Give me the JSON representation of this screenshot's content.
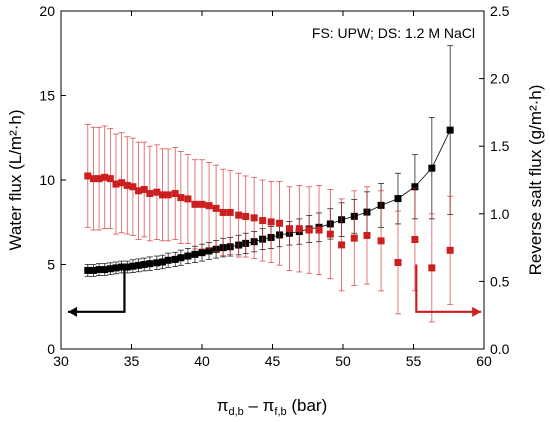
{
  "chart_data": {
    "type": "scatter",
    "annotation": "FS: UPW; DS: 1.2 M NaCl",
    "xlabel": {
      "pi": "π",
      "sub1": "d,b",
      "dash": " – ",
      "sub2": "f,b",
      "unit": " (bar)"
    },
    "ylabel_left": "Water flux (L/m²·h)",
    "ylabel_right": "Reverse salt flux (g/m²·h)",
    "xlim": [
      30,
      60
    ],
    "ylim_left": [
      0,
      20
    ],
    "ylim_right": [
      0,
      2.5
    ],
    "x_ticks": [
      "30",
      "35",
      "40",
      "45",
      "50",
      "55",
      "60"
    ],
    "y_left_ticks": [
      "0",
      "5",
      "10",
      "15",
      "20"
    ],
    "y_right_ticks": [
      "0.0",
      "0.5",
      "1.0",
      "1.5",
      "2.0",
      "2.5"
    ],
    "grid": false,
    "series": [
      {
        "axis": "left",
        "color": "#000000",
        "connected": true,
        "points": [
          [
            31.9,
            4.65,
            0.35
          ],
          [
            32.3,
            4.65,
            0.35
          ],
          [
            32.7,
            4.7,
            0.35
          ],
          [
            33.1,
            4.7,
            0.35
          ],
          [
            33.5,
            4.75,
            0.35
          ],
          [
            33.9,
            4.8,
            0.35
          ],
          [
            34.3,
            4.85,
            0.35
          ],
          [
            34.7,
            4.85,
            0.35
          ],
          [
            35.1,
            4.9,
            0.38
          ],
          [
            35.5,
            4.95,
            0.38
          ],
          [
            35.9,
            5.0,
            0.38
          ],
          [
            36.3,
            5.05,
            0.4
          ],
          [
            36.8,
            5.1,
            0.4
          ],
          [
            37.2,
            5.15,
            0.4
          ],
          [
            37.6,
            5.25,
            0.42
          ],
          [
            38.1,
            5.3,
            0.42
          ],
          [
            38.5,
            5.4,
            0.45
          ],
          [
            39.0,
            5.5,
            0.45
          ],
          [
            39.5,
            5.6,
            0.48
          ],
          [
            40.0,
            5.7,
            0.5
          ],
          [
            40.5,
            5.8,
            0.5
          ],
          [
            41.0,
            5.9,
            0.52
          ],
          [
            41.5,
            6.0,
            0.55
          ],
          [
            42.0,
            6.05,
            0.55
          ],
          [
            42.6,
            6.15,
            0.58
          ],
          [
            43.1,
            6.25,
            0.6
          ],
          [
            43.7,
            6.35,
            0.6
          ],
          [
            44.3,
            6.5,
            0.62
          ],
          [
            44.9,
            6.6,
            0.65
          ],
          [
            45.5,
            6.75,
            0.7
          ],
          [
            46.2,
            6.85,
            0.7
          ],
          [
            46.9,
            6.95,
            0.75
          ],
          [
            47.6,
            7.1,
            0.8
          ],
          [
            48.3,
            7.2,
            0.85
          ],
          [
            49.1,
            7.4,
            0.9
          ],
          [
            49.9,
            7.65,
            1.0
          ],
          [
            50.8,
            7.85,
            1.0
          ],
          [
            51.7,
            8.1,
            1.2
          ],
          [
            52.7,
            8.5,
            1.3
          ],
          [
            53.9,
            8.9,
            1.5
          ],
          [
            55.1,
            9.6,
            1.9
          ],
          [
            56.3,
            10.7,
            3.0
          ],
          [
            57.6,
            12.95,
            5.0
          ]
        ]
      },
      {
        "axis": "right",
        "color": "#cc1f1f",
        "connected": false,
        "points": [
          [
            31.9,
            1.28,
            0.38
          ],
          [
            32.3,
            1.26,
            0.38
          ],
          [
            32.7,
            1.26,
            0.38
          ],
          [
            33.1,
            1.27,
            0.38
          ],
          [
            33.5,
            1.26,
            0.37
          ],
          [
            33.9,
            1.22,
            0.37
          ],
          [
            34.3,
            1.23,
            0.37
          ],
          [
            34.7,
            1.21,
            0.36
          ],
          [
            35.1,
            1.2,
            0.36
          ],
          [
            35.5,
            1.17,
            0.36
          ],
          [
            35.9,
            1.18,
            0.35
          ],
          [
            36.3,
            1.15,
            0.35
          ],
          [
            36.8,
            1.16,
            0.35
          ],
          [
            37.2,
            1.14,
            0.34
          ],
          [
            37.6,
            1.14,
            0.34
          ],
          [
            38.1,
            1.15,
            0.34
          ],
          [
            38.5,
            1.12,
            0.34
          ],
          [
            39.0,
            1.11,
            0.33
          ],
          [
            39.5,
            1.07,
            0.33
          ],
          [
            40.0,
            1.07,
            0.33
          ],
          [
            40.5,
            1.06,
            0.32
          ],
          [
            41.0,
            1.04,
            0.32
          ],
          [
            41.5,
            1.01,
            0.32
          ],
          [
            42.0,
            1.01,
            0.31
          ],
          [
            42.6,
            0.99,
            0.31
          ],
          [
            43.1,
            0.98,
            0.3
          ],
          [
            43.7,
            0.97,
            0.3
          ],
          [
            44.3,
            0.95,
            0.3
          ],
          [
            44.9,
            0.94,
            0.3
          ],
          [
            45.5,
            0.93,
            0.31
          ],
          [
            46.2,
            0.89,
            0.31
          ],
          [
            46.9,
            0.89,
            0.32
          ],
          [
            47.6,
            0.88,
            0.32
          ],
          [
            48.3,
            0.88,
            0.33
          ],
          [
            49.1,
            0.85,
            0.33
          ],
          [
            49.9,
            0.77,
            0.34
          ],
          [
            50.8,
            0.82,
            0.35
          ],
          [
            51.7,
            0.84,
            0.36
          ],
          [
            52.7,
            0.8,
            0.37
          ],
          [
            53.9,
            0.64,
            0.38
          ],
          [
            55.1,
            0.81,
            0.38
          ],
          [
            56.3,
            0.6,
            0.4
          ],
          [
            57.6,
            0.73,
            0.4
          ]
        ]
      }
    ],
    "arrows": [
      {
        "series_color": "#000000",
        "direction": "left",
        "x_from": 34.5,
        "x_to": 30.5,
        "y_top_left": 5,
        "y_base_left": 2.2
      },
      {
        "series_color": "#cc1f1f",
        "direction": "right",
        "x_from": 55.2,
        "x_to": 59.8,
        "y_top_left": 5,
        "y_base_left": 2.2
      }
    ]
  }
}
